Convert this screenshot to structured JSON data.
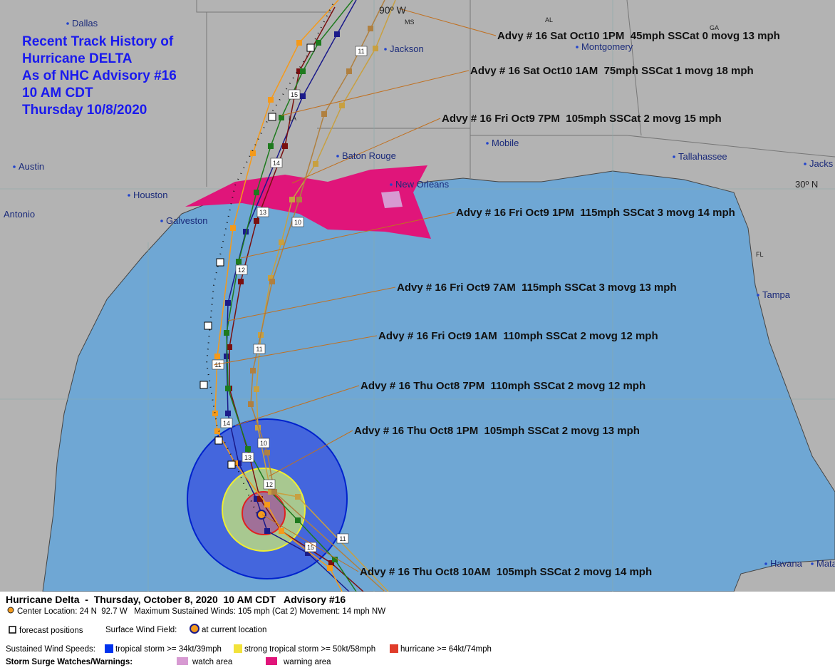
{
  "title_lines": [
    "Recent Track History of",
    "Hurricane DELTA",
    "As of NHC Advisory #16",
    "10 AM CDT",
    "Thursday 10/8/2020"
  ],
  "advisories": [
    "Advy # 16 Sat Oct10 1PM  45mph SSCat 0 movg 13 mph",
    "Advy # 16 Sat Oct10 1AM  75mph SSCat 1 movg 18 mph",
    "Advy # 16 Fri Oct9 7PM  105mph SSCat 2 movg 15 mph",
    "Advy # 16 Fri Oct9 1PM  115mph SSCat 3 movg 14 mph",
    "Advy # 16 Fri Oct9 7AM  115mph SSCat 3 movg 13 mph",
    "Advy # 16 Fri Oct9 1AM  110mph SSCat 2 movg 12 mph",
    "Advy # 16 Thu Oct8 7PM  110mph SSCat 2 movg 12 mph",
    "Advy # 16 Thu Oct8 1PM  105mph SSCat 2 movg 13 mph",
    "Advy # 16 Thu Oct8 10AM  105mph SSCat 2 movg 14 mph"
  ],
  "places": [
    "Dallas",
    "Jackson",
    "Montgomery",
    "Baton Rouge",
    "Mobile",
    "Tallahassee",
    "Jacks",
    "Austin",
    "Houston",
    "New Orleans",
    "Antonio",
    "Galveston",
    "Tampa",
    "Havana",
    "Mata"
  ],
  "map_labels": [
    "90º W",
    "30º N",
    "AL",
    "GA",
    "MS",
    "LA",
    "FL"
  ],
  "track_labels": [
    "11",
    "15",
    "14",
    "13",
    "10",
    "12",
    "11",
    "11",
    "14",
    "10",
    "13",
    "12",
    "11",
    "15"
  ],
  "legend": {
    "header": "Hurricane Delta  -  Thursday, October 8, 2020  10 AM CDT   Advisory #16",
    "center": "Center Location: 24 N  92.7 W   Maximum Sustained Winds: 105 mph (Cat 2) Movement: 14 mph NW",
    "forecast": "forecast positions",
    "wind_field": "Surface Wind Field:",
    "current": "at current location",
    "speeds": "Sustained Wind Speeds:",
    "ts": "tropical storm >= 34kt/39mph",
    "sts": "strong tropical storm >= 50kt/58mph",
    "hu": "hurricane >= 64kt/74mph",
    "surge": "Storm Surge Watches/Warnings:",
    "watch": "watch area",
    "warning": "warning area"
  }
}
